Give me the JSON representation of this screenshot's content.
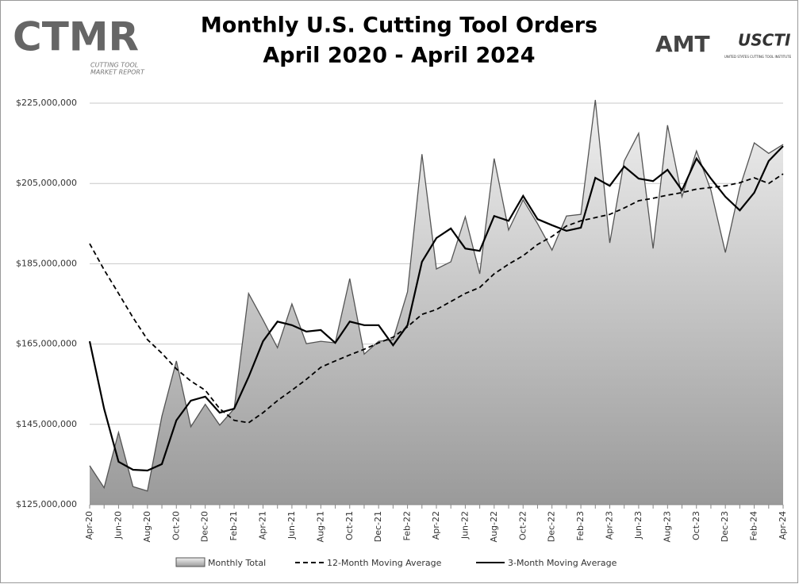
{
  "chart_data": {
    "type": "line",
    "title": "Monthly U.S. Cutting Tool Orders",
    "subtitle": "April 2020 - April 2024",
    "logos": {
      "ctmr": "CTMR",
      "ctmr_sub": [
        "CUTTING TOOL",
        "MARKET REPORT"
      ],
      "amt": "AMT",
      "uscti": "USCTI",
      "uscti_sub": "UNITED STATES CUTTING TOOL INSTITUTE"
    },
    "categories": [
      "Apr-20",
      null,
      "Jun-20",
      null,
      "Aug-20",
      null,
      "Oct-20",
      null,
      "Dec-20",
      null,
      "Feb-21",
      null,
      "Apr-21",
      null,
      "Jun-21",
      null,
      "Aug-21",
      null,
      "Oct-21",
      null,
      "Dec-21",
      null,
      "Feb-22",
      null,
      "Apr-22",
      null,
      "Jun-22",
      null,
      "Aug-22",
      null,
      "Oct-22",
      null,
      "Dec-22",
      null,
      "Feb-23",
      null,
      "Apr-23",
      null,
      "Jun-23",
      null,
      "Aug-23",
      null,
      "Oct-23",
      null,
      "Dec-23",
      null,
      "Feb-24",
      null,
      "Apr-24"
    ],
    "ylim": [
      125000000,
      225000000
    ],
    "yticks": [
      {
        "value": 125000000,
        "label": "$125,000,000"
      },
      {
        "value": 145000000,
        "label": "$145,000,000"
      },
      {
        "value": 165000000,
        "label": "$165,000,000"
      },
      {
        "value": 185000000,
        "label": "$185,000,000"
      },
      {
        "value": 205000000,
        "label": "$205,000,000"
      },
      {
        "value": 225000000,
        "label": "$225,000,000"
      }
    ],
    "grid": true,
    "legend": "bottom",
    "series": [
      {
        "name": "Monthly Total",
        "kind": "area",
        "color": "#555555",
        "values": [
          134700000,
          129200000,
          143000000,
          129500000,
          128400000,
          147000000,
          160800000,
          144400000,
          150000000,
          144800000,
          148900000,
          177600000,
          171000000,
          164100000,
          175000000,
          165100000,
          165700000,
          165300000,
          181300000,
          162500000,
          165700000,
          166100000,
          178000000,
          212300000,
          183700000,
          185500000,
          196700000,
          182500000,
          211200000,
          193400000,
          200900000,
          195000000,
          188400000,
          196900000,
          197300000,
          225800000,
          190200000,
          210600000,
          217500000,
          188800000,
          219500000,
          201700000,
          213100000,
          203300000,
          187800000,
          204000000,
          215100000,
          212500000,
          214700000
        ]
      },
      {
        "name": "12-Month Moving Average",
        "kind": "line",
        "dash": true,
        "color": "#000000",
        "values": [
          190000000,
          183500000,
          177600000,
          171600000,
          166100000,
          162700000,
          158800000,
          155800000,
          153500000,
          148900000,
          146000000,
          145400000,
          147900000,
          150900000,
          153500000,
          156200000,
          159200000,
          160800000,
          162300000,
          163700000,
          165300000,
          166700000,
          169300000,
          172400000,
          173600000,
          175600000,
          177600000,
          179100000,
          182500000,
          184900000,
          187000000,
          189800000,
          191800000,
          194400000,
          195700000,
          196500000,
          197300000,
          198900000,
          200700000,
          201300000,
          202100000,
          202700000,
          203600000,
          204000000,
          204400000,
          205200000,
          206400000,
          205000000,
          207400000
        ]
      },
      {
        "name": "3-Month Moving Average",
        "kind": "line",
        "dash": false,
        "color": "#000000",
        "values": [
          165700000,
          148900000,
          135700000,
          133700000,
          133500000,
          135100000,
          146000000,
          150900000,
          151900000,
          147900000,
          148900000,
          156800000,
          165700000,
          170600000,
          169700000,
          168100000,
          168500000,
          165300000,
          170600000,
          169700000,
          169700000,
          164700000,
          169700000,
          185500000,
          191400000,
          193800000,
          188800000,
          188200000,
          196900000,
          195700000,
          201900000,
          196100000,
          194600000,
          193200000,
          194000000,
          206400000,
          204400000,
          209200000,
          206200000,
          205600000,
          208400000,
          203300000,
          211200000,
          206200000,
          201700000,
          198300000,
          202700000,
          210600000,
          214300000
        ]
      }
    ]
  }
}
